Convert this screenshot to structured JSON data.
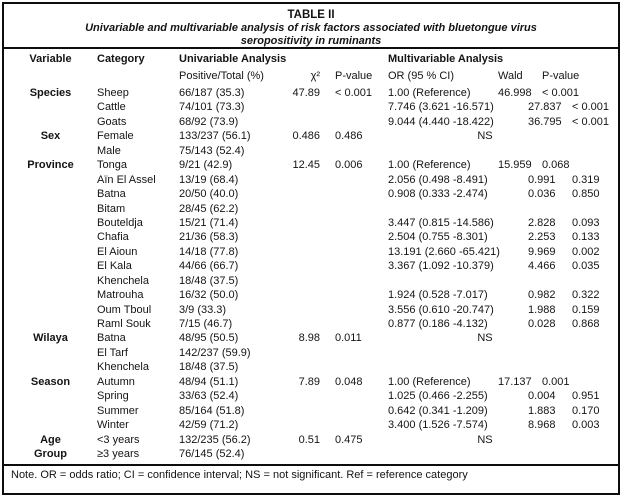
{
  "title": {
    "line1": "TABLE II",
    "line2": "Univariable and multivariable analysis of risk factors associated with bluetongue virus",
    "line3": "seropositivity in ruminants"
  },
  "headers": {
    "variable": "Variable",
    "category": "Category",
    "univariable": "Univariable Analysis",
    "multivariable": "Multivariable Analysis",
    "positive_total": "Positive/Total (%)",
    "chi2": "χ²",
    "p_value_uni": "P-value",
    "or_ci": "OR (95 % CI)",
    "wald": "Wald",
    "p_value_multi": "P-value"
  },
  "rows": [
    {
      "variable": "Species",
      "category": "Sheep",
      "positive_total": "66/187 (35.3)",
      "chi2": "47.89",
      "p_uni": "< 0.001",
      "mv": {
        "type": "ref",
        "or": "1.00 (Reference)",
        "wald": "46.998",
        "p": "< 0.001"
      }
    },
    {
      "variable": "",
      "category": "Cattle",
      "positive_total": "74/101 (73.3)",
      "chi2": "",
      "p_uni": "",
      "mv": {
        "type": "ci",
        "or": "7.746 (3.621 -16.571)",
        "wald": "27.837",
        "p": "< 0.001"
      }
    },
    {
      "variable": "",
      "category": "Goats",
      "positive_total": "68/92 (73.9)",
      "chi2": "",
      "p_uni": "",
      "mv": {
        "type": "ci",
        "or": "9.044 (4.440 -18.422)",
        "wald": "36.795",
        "p": "< 0.001"
      }
    },
    {
      "variable": "Sex",
      "category": "Female",
      "positive_total": "133/237 (56.1)",
      "chi2": "0.486",
      "p_uni": "0.486",
      "mv": {
        "type": "ns",
        "label": "NS"
      }
    },
    {
      "variable": "",
      "category": "Male",
      "positive_total": "75/143 (52.4)",
      "chi2": "",
      "p_uni": "",
      "mv": {
        "type": "none"
      }
    },
    {
      "variable": "Province",
      "category": "Tonga",
      "positive_total": "9/21 (42.9)",
      "chi2": "12.45",
      "p_uni": "0.006",
      "mv": {
        "type": "ref",
        "or": "1.00 (Reference)",
        "wald": "15.959",
        "p": "0.068"
      }
    },
    {
      "variable": "",
      "category": "Aïn El Assel",
      "positive_total": "13/19 (68.4)",
      "chi2": "",
      "p_uni": "",
      "mv": {
        "type": "ci",
        "or": "2.056 (0.498 -8.491)",
        "wald": "0.991",
        "p": "0.319"
      }
    },
    {
      "variable": "",
      "category": "Batna",
      "positive_total": "20/50 (40.0)",
      "chi2": "",
      "p_uni": "",
      "mv": {
        "type": "ci",
        "or": "0.908 (0.333 -2.474)",
        "wald": "0.036",
        "p": "0.850"
      }
    },
    {
      "variable": "",
      "category": "Bitam",
      "positive_total": "28/45 (62.2)",
      "chi2": "",
      "p_uni": "",
      "mv": {
        "type": "none"
      }
    },
    {
      "variable": "",
      "category": "Bouteldja",
      "positive_total": "15/21 (71.4)",
      "chi2": "",
      "p_uni": "",
      "mv": {
        "type": "ci",
        "or": "3.447 (0.815 -14.586)",
        "wald": "2.828",
        "p": "0.093"
      }
    },
    {
      "variable": "",
      "category": "Chafia",
      "positive_total": "21/36 (58.3)",
      "chi2": "",
      "p_uni": "",
      "mv": {
        "type": "ci",
        "or": "2.504 (0.755 -8.301)",
        "wald": "2.253",
        "p": "0.133"
      }
    },
    {
      "variable": "",
      "category": "El Aioun",
      "positive_total": "14/18 (77.8)",
      "chi2": "",
      "p_uni": "",
      "mv": {
        "type": "ci",
        "or": "13.191 (2.660 -65.421)",
        "wald": "9.969",
        "p": "0.002"
      }
    },
    {
      "variable": "",
      "category": "El Kala",
      "positive_total": "44/66 (66.7)",
      "chi2": "",
      "p_uni": "",
      "mv": {
        "type": "ci",
        "or": "3.367 (1.092 -10.379)",
        "wald": "4.466",
        "p": "0.035"
      }
    },
    {
      "variable": "",
      "category": "Khenchela",
      "positive_total": "18/48 (37.5)",
      "chi2": "",
      "p_uni": "",
      "mv": {
        "type": "none"
      }
    },
    {
      "variable": "",
      "category": "Matrouha",
      "positive_total": "16/32 (50.0)",
      "chi2": "",
      "p_uni": "",
      "mv": {
        "type": "ci",
        "or": "1.924 (0.528 -7.017)",
        "wald": "0.982",
        "p": "0.322"
      }
    },
    {
      "variable": "",
      "category": "Oum Tboul",
      "positive_total": "3/9 (33.3)",
      "chi2": "",
      "p_uni": "",
      "mv": {
        "type": "ci",
        "or": "3.556 (0.610 -20.747)",
        "wald": "1.988",
        "p": "0.159"
      }
    },
    {
      "variable": "",
      "category": "Raml Souk",
      "positive_total": "7/15 (46.7)",
      "chi2": "",
      "p_uni": "",
      "mv": {
        "type": "ci",
        "or": "0.877 (0.186 -4.132)",
        "wald": "0.028",
        "p": "0.868"
      }
    },
    {
      "variable": "Wilaya",
      "category": "Batna",
      "positive_total": "48/95 (50.5)",
      "chi2": "8.98",
      "p_uni": "0.011",
      "mv": {
        "type": "ns",
        "label": "NS"
      }
    },
    {
      "variable": "",
      "category": "El Tarf",
      "positive_total": "142/237 (59.9)",
      "chi2": "",
      "p_uni": "",
      "mv": {
        "type": "none"
      }
    },
    {
      "variable": "",
      "category": "Khenchela",
      "positive_total": "18/48 (37.5)",
      "chi2": "",
      "p_uni": "",
      "mv": {
        "type": "none"
      }
    },
    {
      "variable": "Season",
      "category": "Autumn",
      "positive_total": "48/94 (51.1)",
      "chi2": "7.89",
      "p_uni": "0.048",
      "mv": {
        "type": "ref",
        "or": "1.00 (Reference)",
        "wald": "17.137",
        "p": "0.001"
      }
    },
    {
      "variable": "",
      "category": "Spring",
      "positive_total": "33/63 (52.4)",
      "chi2": "",
      "p_uni": "",
      "mv": {
        "type": "ci",
        "or": "1.025 (0.466 -2.255)",
        "wald": "0.004",
        "p": "0.951"
      }
    },
    {
      "variable": "",
      "category": "Summer",
      "positive_total": "85/164 (51.8)",
      "chi2": "",
      "p_uni": "",
      "mv": {
        "type": "ci",
        "or": "0.642 (0.341 -1.209)",
        "wald": "1.883",
        "p": "0.170"
      }
    },
    {
      "variable": "",
      "category": "Winter",
      "positive_total": "42/59 (71.2)",
      "chi2": "",
      "p_uni": "",
      "mv": {
        "type": "ci",
        "or": "3.400 (1.526 -7.574)",
        "wald": "8.968",
        "p": "0.003"
      }
    },
    {
      "variable": "Age",
      "category": "<3 years",
      "positive_total": "132/235 (56.2)",
      "chi2": "0.51",
      "p_uni": "0.475",
      "mv": {
        "type": "ns",
        "label": "NS"
      }
    },
    {
      "variable": "Group",
      "category": "≥3 years",
      "positive_total": "76/145 (52.4)",
      "chi2": "",
      "p_uni": "",
      "mv": {
        "type": "none"
      }
    }
  ],
  "note": "Note. OR = odds ratio; CI = confidence interval; NS = not significant. Ref = reference category",
  "colors": {
    "text": "#141414",
    "border": "#0d0d0d",
    "background": "#ffffff"
  }
}
